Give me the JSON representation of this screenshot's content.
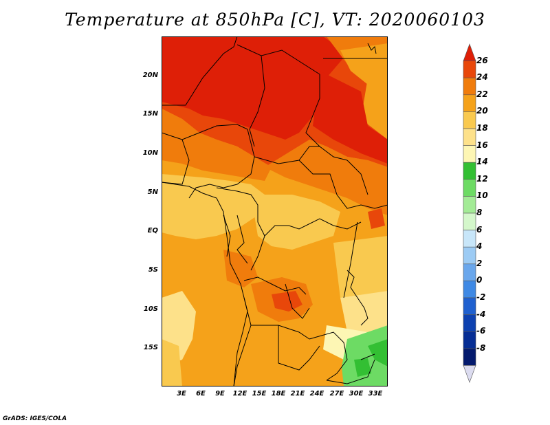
{
  "title": "Temperature at 850hPa [C], VT: 2020060103",
  "credit": "GrADS: IGES/COLA",
  "map": {
    "lat_labels": [
      "20N",
      "15N",
      "10N",
      "5N",
      "EQ",
      "5S",
      "10S",
      "15S"
    ],
    "lon_labels": [
      "3E",
      "6E",
      "9E",
      "12E",
      "15E",
      "18E",
      "21E",
      "24E",
      "27E",
      "30E",
      "33E"
    ]
  },
  "colorbar": {
    "labels": [
      "26",
      "24",
      "22",
      "20",
      "18",
      "16",
      "14",
      "12",
      "10",
      "8",
      "6",
      "4",
      "2",
      "0",
      "-2",
      "-4",
      "-6",
      "-8"
    ],
    "colors": [
      "#de1f07",
      "#e8470a",
      "#f07c0c",
      "#f5a21a",
      "#f9c94f",
      "#fde18a",
      "#fdf6b4",
      "#33bf33",
      "#6ddb64",
      "#a3eb96",
      "#d4f7cb",
      "#c8e6f9",
      "#9ccbf4",
      "#6aa7ec",
      "#3f89e4",
      "#1f60cf",
      "#0d41b0",
      "#062d94",
      "#041a6e",
      "#dcdcf0"
    ]
  },
  "colors": {
    "hot": "#de1f07",
    "warm": "#f07c0c",
    "mild": "#f5a21a",
    "cool": "#f9c94f",
    "green": "#33bf33"
  }
}
